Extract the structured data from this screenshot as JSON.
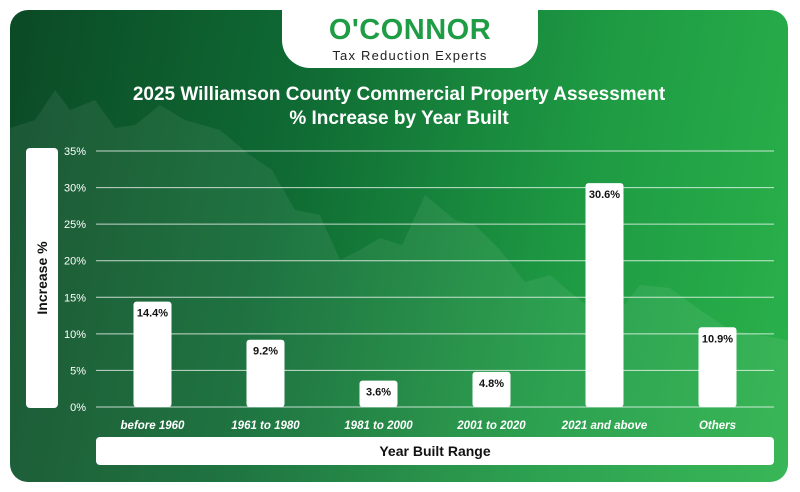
{
  "logo": {
    "name": "O'CONNOR",
    "tagline": "Tax Reduction Experts"
  },
  "colors": {
    "brand": "#1f9d45",
    "background_dark": "#0b4a26",
    "background_light": "#2ab24b",
    "bar": "#ffffff"
  },
  "chart_data": {
    "type": "bar",
    "title": "2025 Williamson County Commercial Property Assessment",
    "subtitle": "% Increase by Year Built",
    "xlabel": "Year Built Range",
    "ylabel": "Increase %",
    "categories": [
      "before 1960",
      "1961 to 1980",
      "1981 to 2000",
      "2001 to 2020",
      "2021 and above",
      "Others"
    ],
    "values": [
      14.4,
      9.2,
      3.6,
      4.8,
      30.6,
      10.9
    ],
    "value_labels": [
      "14.4%",
      "9.2%",
      "3.6%",
      "4.8%",
      "30.6%",
      "10.9%"
    ],
    "ylim": [
      0,
      35
    ],
    "yticks": [
      0,
      5,
      10,
      15,
      20,
      25,
      30,
      35
    ],
    "ytick_labels": [
      "0%",
      "5%",
      "10%",
      "15%",
      "20%",
      "25%",
      "30%",
      "35%"
    ],
    "grid": true
  }
}
